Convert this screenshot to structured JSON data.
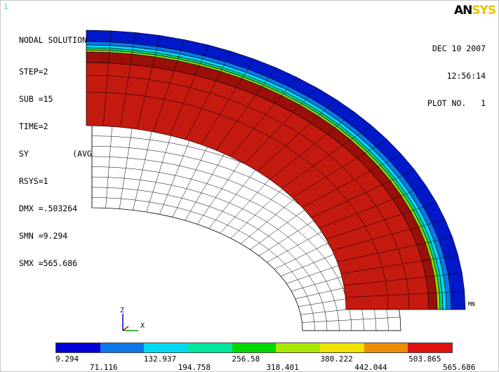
{
  "window_number": "1",
  "brand": {
    "part1": "AN",
    "part2": "SYS"
  },
  "header": {
    "title": "NODAL SOLUTION",
    "lines": [
      "STEP=2",
      "SUB =15",
      "TIME=2",
      "SY         (AVG)",
      "RSYS=1",
      "DMX =.503264",
      "SMN =9.294",
      "SMX =565.686"
    ]
  },
  "plot_info": {
    "date": "DEC 10 2007",
    "time": "12:56:14",
    "plot_no": "PLOT NO.   1"
  },
  "mn_label": "MN",
  "triad": {
    "z": "Z",
    "x": "X"
  },
  "legend": {
    "colors": [
      "#0000d8",
      "#0a78e8",
      "#00d8f4",
      "#00e6a0",
      "#00d800",
      "#a8e800",
      "#f0e400",
      "#f08c00",
      "#e01010"
    ],
    "labels_top": [
      "9.294",
      "132.937",
      "256.58",
      "380.222",
      "503.865"
    ],
    "labels_bottom": [
      "71.116",
      "194.758",
      "318.401",
      "442.044",
      "565.686"
    ]
  },
  "model_colors": {
    "outer": "#0018c8",
    "band2": "#0a78e8",
    "band3": "#00d8f4",
    "band4": "#00d890",
    "band5": "#8ad800",
    "inner": "#c41a10",
    "inner_dark": "#9a1008",
    "undeformed": "#ffffff"
  }
}
